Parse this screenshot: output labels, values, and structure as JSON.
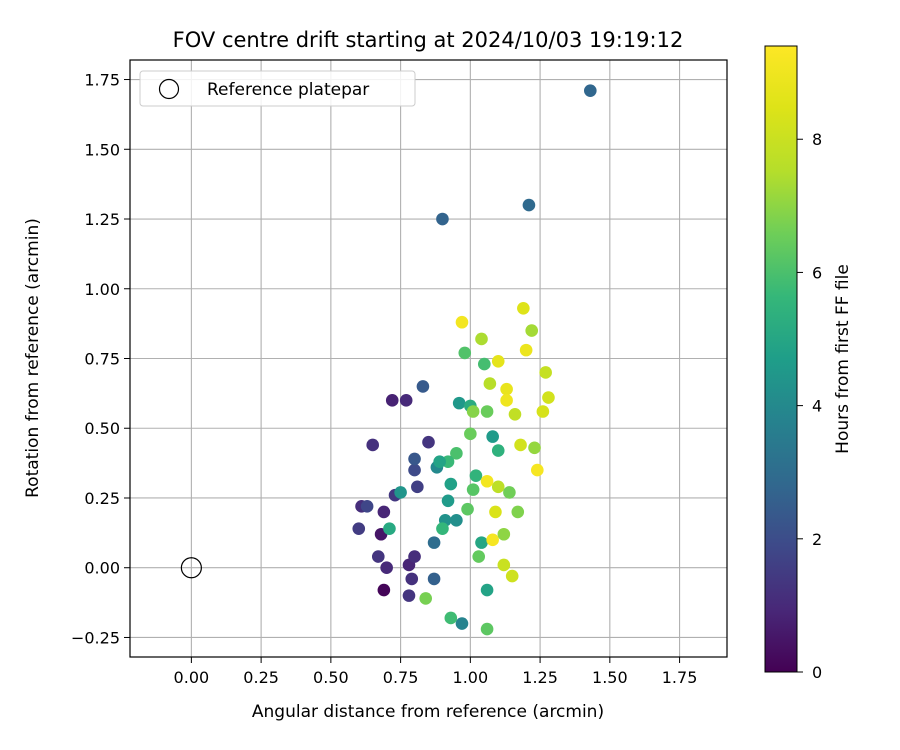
{
  "chart_data": {
    "type": "scatter",
    "title": "FOV centre drift starting at 2024/10/03 19:19:12",
    "xlabel": "Angular distance from reference (arcmin)",
    "ylabel": "Rotation from reference (arcmin)",
    "xlim": [
      -0.22,
      1.92
    ],
    "ylim": [
      -0.32,
      1.82
    ],
    "xticks": [
      "0.00",
      "0.25",
      "0.50",
      "0.75",
      "1.00",
      "1.25",
      "1.50",
      "1.75"
    ],
    "yticks": [
      "−0.25",
      "0.00",
      "0.25",
      "0.50",
      "0.75",
      "1.00",
      "1.25",
      "1.50",
      "1.75"
    ],
    "grid": true,
    "colormap": "viridis",
    "colorbar": {
      "label": "Hours from first FF file",
      "range": [
        0,
        9.4
      ],
      "ticks": [
        "0",
        "2",
        "4",
        "6",
        "8"
      ]
    },
    "legend": {
      "position": "top-left",
      "entries": [
        "Reference platepar"
      ]
    },
    "reference_point": {
      "x": 0.0,
      "y": 0.0
    },
    "points": [
      {
        "x": 0.69,
        "y": -0.08,
        "c": 0.1
      },
      {
        "x": 0.68,
        "y": 0.12,
        "c": 0.5
      },
      {
        "x": 0.61,
        "y": 0.22,
        "c": 1.1
      },
      {
        "x": 0.6,
        "y": 0.14,
        "c": 1.5
      },
      {
        "x": 0.63,
        "y": 0.22,
        "c": 1.8
      },
      {
        "x": 0.65,
        "y": 0.44,
        "c": 1.2
      },
      {
        "x": 0.67,
        "y": 0.04,
        "c": 1.3
      },
      {
        "x": 0.69,
        "y": 0.2,
        "c": 0.9
      },
      {
        "x": 0.7,
        "y": 0.0,
        "c": 1.0
      },
      {
        "x": 0.72,
        "y": 0.6,
        "c": 0.8
      },
      {
        "x": 0.73,
        "y": 0.26,
        "c": 1.4
      },
      {
        "x": 0.77,
        "y": 0.6,
        "c": 1.0
      },
      {
        "x": 0.78,
        "y": -0.1,
        "c": 1.3
      },
      {
        "x": 0.78,
        "y": 0.01,
        "c": 0.9
      },
      {
        "x": 0.79,
        "y": -0.04,
        "c": 1.2
      },
      {
        "x": 0.8,
        "y": 0.04,
        "c": 1.1
      },
      {
        "x": 0.8,
        "y": 0.35,
        "c": 1.9
      },
      {
        "x": 0.8,
        "y": 0.39,
        "c": 2.3
      },
      {
        "x": 0.81,
        "y": 0.29,
        "c": 1.6
      },
      {
        "x": 0.83,
        "y": 0.65,
        "c": 2.4
      },
      {
        "x": 0.85,
        "y": 0.45,
        "c": 1.3
      },
      {
        "x": 0.87,
        "y": 0.09,
        "c": 3.0
      },
      {
        "x": 0.87,
        "y": -0.04,
        "c": 2.6
      },
      {
        "x": 0.88,
        "y": 0.36,
        "c": 4.0
      },
      {
        "x": 0.9,
        "y": 1.25,
        "c": 2.7
      },
      {
        "x": 0.91,
        "y": 0.17,
        "c": 4.3
      },
      {
        "x": 0.92,
        "y": 0.24,
        "c": 4.6
      },
      {
        "x": 0.93,
        "y": 0.3,
        "c": 4.8
      },
      {
        "x": 0.95,
        "y": 0.17,
        "c": 4.2
      },
      {
        "x": 0.96,
        "y": 0.59,
        "c": 4.5
      },
      {
        "x": 0.97,
        "y": -0.2,
        "c": 3.8
      },
      {
        "x": 0.98,
        "y": 0.77,
        "c": 6.1
      },
      {
        "x": 0.99,
        "y": 0.21,
        "c": 6.3
      },
      {
        "x": 1.0,
        "y": 0.58,
        "c": 5.2
      },
      {
        "x": 1.01,
        "y": 0.56,
        "c": 6.9
      },
      {
        "x": 1.02,
        "y": 0.33,
        "c": 5.5
      },
      {
        "x": 1.03,
        "y": 0.04,
        "c": 6.4
      },
      {
        "x": 1.04,
        "y": 0.09,
        "c": 5.0
      },
      {
        "x": 1.05,
        "y": 0.73,
        "c": 5.9
      },
      {
        "x": 1.06,
        "y": -0.08,
        "c": 4.9
      },
      {
        "x": 1.06,
        "y": 0.56,
        "c": 6.5
      },
      {
        "x": 1.07,
        "y": 0.66,
        "c": 7.6
      },
      {
        "x": 1.08,
        "y": 0.47,
        "c": 4.6
      },
      {
        "x": 1.09,
        "y": 0.2,
        "c": 8.4
      },
      {
        "x": 1.1,
        "y": 0.74,
        "c": 8.7
      },
      {
        "x": 1.1,
        "y": 0.42,
        "c": 5.4
      },
      {
        "x": 1.12,
        "y": 0.01,
        "c": 8.0
      },
      {
        "x": 1.13,
        "y": 0.64,
        "c": 8.8
      },
      {
        "x": 1.15,
        "y": -0.03,
        "c": 8.1
      },
      {
        "x": 1.17,
        "y": 0.2,
        "c": 6.8
      },
      {
        "x": 1.19,
        "y": 0.93,
        "c": 8.5
      },
      {
        "x": 1.2,
        "y": 0.78,
        "c": 8.9
      },
      {
        "x": 1.21,
        "y": 1.3,
        "c": 2.9
      },
      {
        "x": 1.22,
        "y": 0.85,
        "c": 7.3
      },
      {
        "x": 1.24,
        "y": 0.35,
        "c": 9.2
      },
      {
        "x": 1.27,
        "y": 0.7,
        "c": 7.9
      },
      {
        "x": 1.43,
        "y": 1.71,
        "c": 2.8
      },
      {
        "x": 0.97,
        "y": 0.88,
        "c": 9.1
      },
      {
        "x": 1.04,
        "y": 0.82,
        "c": 7.4
      },
      {
        "x": 1.13,
        "y": 0.6,
        "c": 9.0
      },
      {
        "x": 1.16,
        "y": 0.55,
        "c": 7.8
      },
      {
        "x": 1.18,
        "y": 0.44,
        "c": 8.2
      },
      {
        "x": 1.23,
        "y": 0.43,
        "c": 7.1
      },
      {
        "x": 1.26,
        "y": 0.56,
        "c": 8.3
      },
      {
        "x": 1.28,
        "y": 0.61,
        "c": 8.2
      },
      {
        "x": 0.95,
        "y": 0.41,
        "c": 6.0
      },
      {
        "x": 0.92,
        "y": 0.38,
        "c": 5.7
      },
      {
        "x": 1.01,
        "y": 0.28,
        "c": 6.2
      },
      {
        "x": 1.06,
        "y": 0.31,
        "c": 9.1
      },
      {
        "x": 1.1,
        "y": 0.29,
        "c": 7.7
      },
      {
        "x": 1.14,
        "y": 0.27,
        "c": 6.6
      },
      {
        "x": 1.08,
        "y": 0.1,
        "c": 9.2
      },
      {
        "x": 0.9,
        "y": 0.14,
        "c": 5.6
      },
      {
        "x": 0.93,
        "y": -0.18,
        "c": 5.8
      },
      {
        "x": 0.84,
        "y": -0.11,
        "c": 6.7
      },
      {
        "x": 0.71,
        "y": 0.14,
        "c": 5.1
      },
      {
        "x": 0.75,
        "y": 0.27,
        "c": 4.4
      },
      {
        "x": 0.89,
        "y": 0.38,
        "c": 4.9
      },
      {
        "x": 1.06,
        "y": -0.22,
        "c": 6.3
      },
      {
        "x": 1.0,
        "y": 0.48,
        "c": 6.5
      },
      {
        "x": 1.12,
        "y": 0.12,
        "c": 7.0
      }
    ]
  }
}
